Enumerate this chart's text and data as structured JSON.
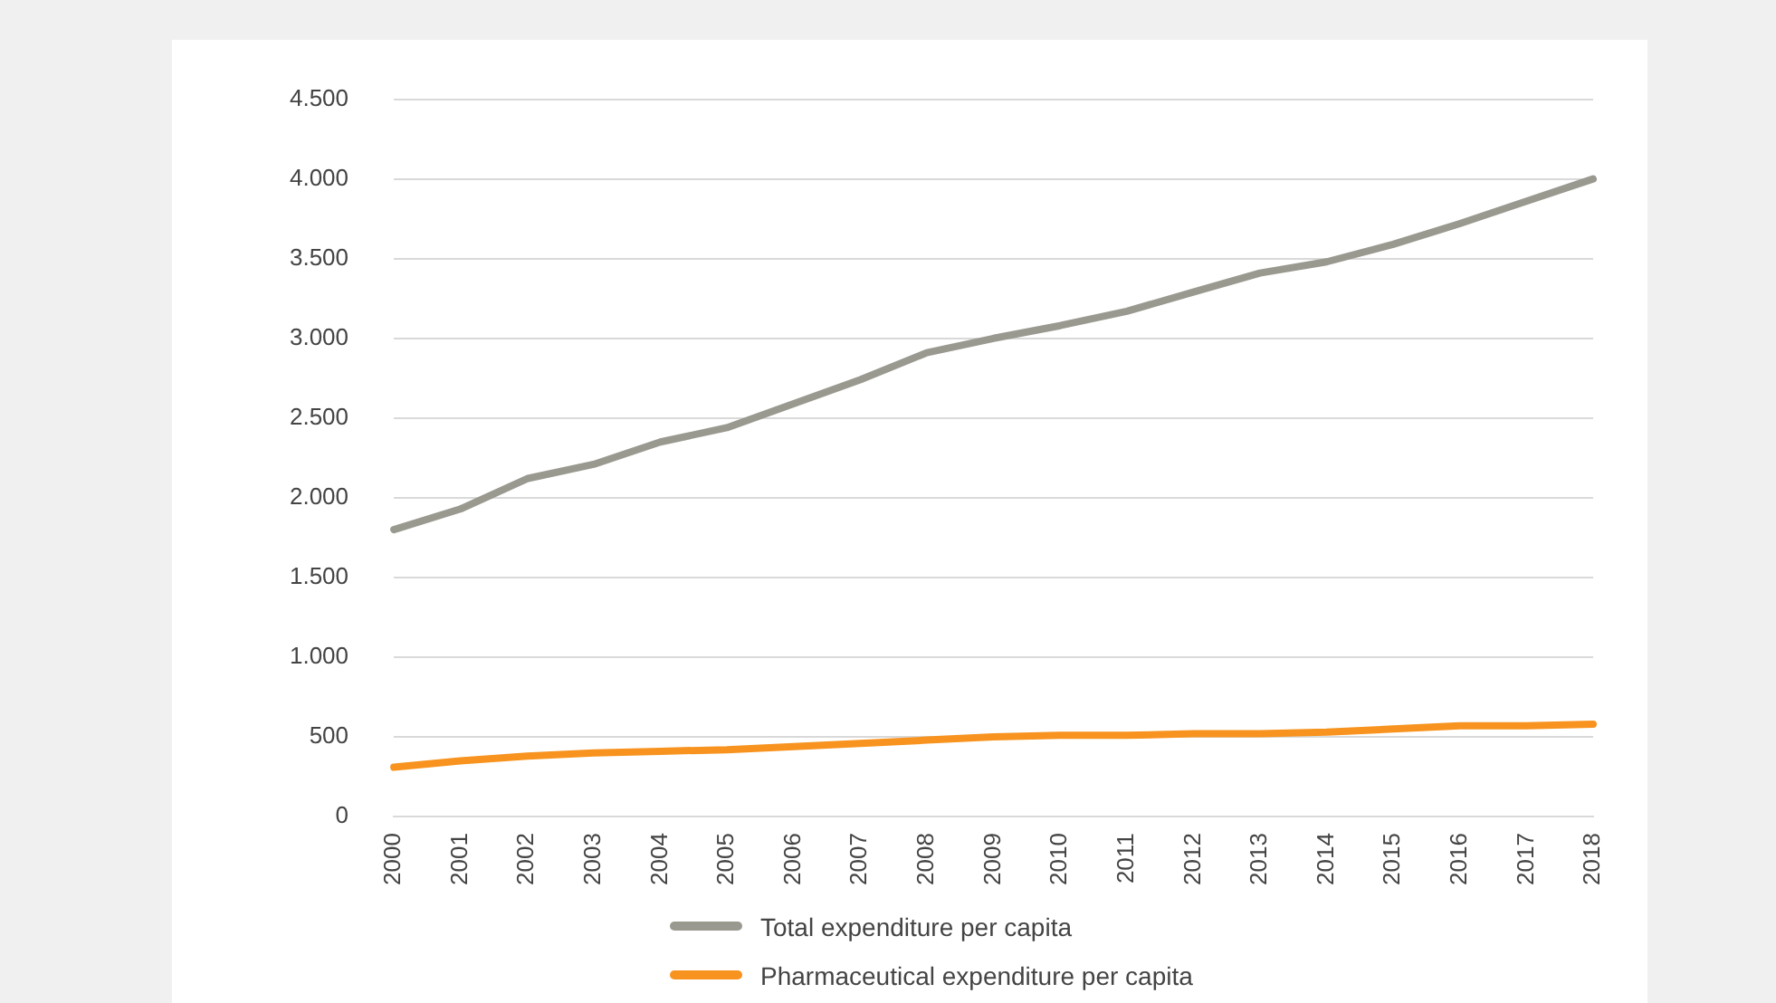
{
  "chart_data": {
    "type": "line",
    "categories": [
      "2000",
      "2001",
      "2002",
      "2003",
      "2004",
      "2005",
      "2006",
      "2007",
      "2008",
      "2009",
      "2010",
      "2011",
      "2012",
      "2013",
      "2014",
      "2015",
      "2016",
      "2017",
      "2018"
    ],
    "series": [
      {
        "name": "Total expenditure per capita",
        "color": "#999990",
        "values": [
          1800,
          1930,
          2120,
          2210,
          2350,
          2440,
          2590,
          2740,
          2910,
          3000,
          3080,
          3170,
          3290,
          3410,
          3480,
          3590,
          3720,
          3860,
          4000
        ]
      },
      {
        "name": "Pharmaceutical expenditure per capita",
        "color": "#f7931e",
        "values": [
          310,
          350,
          380,
          400,
          410,
          420,
          440,
          460,
          480,
          500,
          510,
          510,
          520,
          520,
          530,
          550,
          570,
          570,
          580
        ]
      }
    ],
    "ylim": [
      0,
      4500
    ],
    "yticks": [
      0,
      {
        "value": 500,
        "label": "500"
      },
      {
        "value": 1000,
        "label": "1.000"
      },
      {
        "value": 1500,
        "label": "1.500"
      },
      {
        "value": 2000,
        "label": "2.000"
      },
      {
        "value": 2500,
        "label": "2.500"
      },
      {
        "value": 3000,
        "label": "3.000"
      },
      {
        "value": 3500,
        "label": "3.500"
      },
      {
        "value": 4000,
        "label": "4.000"
      },
      {
        "value": 4500,
        "label": "4.500"
      }
    ],
    "grid": "y",
    "legend": "bottom",
    "marker": "none",
    "line_style": "solid"
  }
}
